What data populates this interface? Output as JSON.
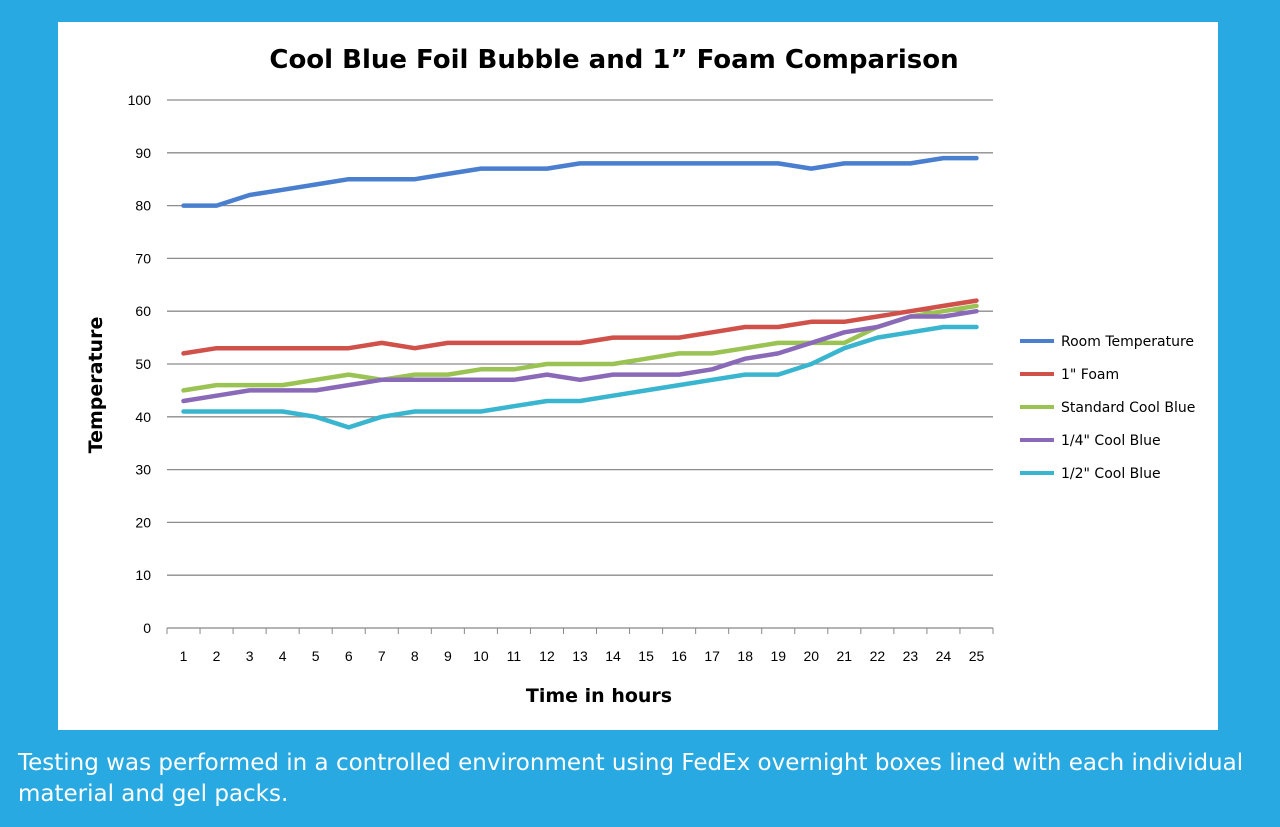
{
  "caption": "Testing was performed in a controlled environment using FedEx overnight boxes lined with each individual material and gel packs.",
  "chart_data": {
    "type": "line",
    "title": "Cool Blue Foil Bubble and 1” Foam Comparison",
    "xlabel": "Time in hours",
    "ylabel": "Temperature",
    "ylim": [
      0,
      100
    ],
    "yticks": [
      0,
      10,
      20,
      30,
      40,
      50,
      60,
      70,
      80,
      90,
      100
    ],
    "grid": true,
    "legend_position": "right",
    "x": [
      1,
      2,
      3,
      4,
      5,
      6,
      7,
      8,
      9,
      10,
      11,
      12,
      13,
      14,
      15,
      16,
      17,
      18,
      19,
      20,
      21,
      22,
      23,
      24,
      25
    ],
    "series": [
      {
        "name": "Room Temperature",
        "color": "#4a7fcf",
        "values": [
          80,
          80,
          82,
          83,
          84,
          85,
          85,
          85,
          86,
          87,
          87,
          87,
          88,
          88,
          88,
          88,
          88,
          88,
          88,
          87,
          88,
          88,
          88,
          89,
          89
        ]
      },
      {
        "name": "1\" Foam",
        "color": "#d0504a",
        "values": [
          52,
          53,
          53,
          53,
          53,
          53,
          54,
          53,
          54,
          54,
          54,
          54,
          54,
          55,
          55,
          55,
          56,
          57,
          57,
          58,
          58,
          59,
          60,
          61,
          62
        ]
      },
      {
        "name": "Standard Cool Blue",
        "color": "#9ac353",
        "values": [
          45,
          46,
          46,
          46,
          47,
          48,
          47,
          48,
          48,
          49,
          49,
          50,
          50,
          50,
          51,
          52,
          52,
          53,
          54,
          54,
          54,
          57,
          59,
          60,
          61
        ]
      },
      {
        "name": "1/4\" Cool Blue",
        "color": "#8a6ab8",
        "values": [
          43,
          44,
          45,
          45,
          45,
          46,
          47,
          47,
          47,
          47,
          47,
          48,
          47,
          48,
          48,
          48,
          49,
          51,
          52,
          54,
          56,
          57,
          59,
          59,
          60
        ]
      },
      {
        "name": "1/2\" Cool Blue",
        "color": "#3ab5cf",
        "values": [
          41,
          41,
          41,
          41,
          40,
          38,
          40,
          41,
          41,
          41,
          42,
          43,
          43,
          44,
          45,
          46,
          47,
          48,
          48,
          50,
          53,
          55,
          56,
          57,
          57
        ]
      }
    ]
  }
}
